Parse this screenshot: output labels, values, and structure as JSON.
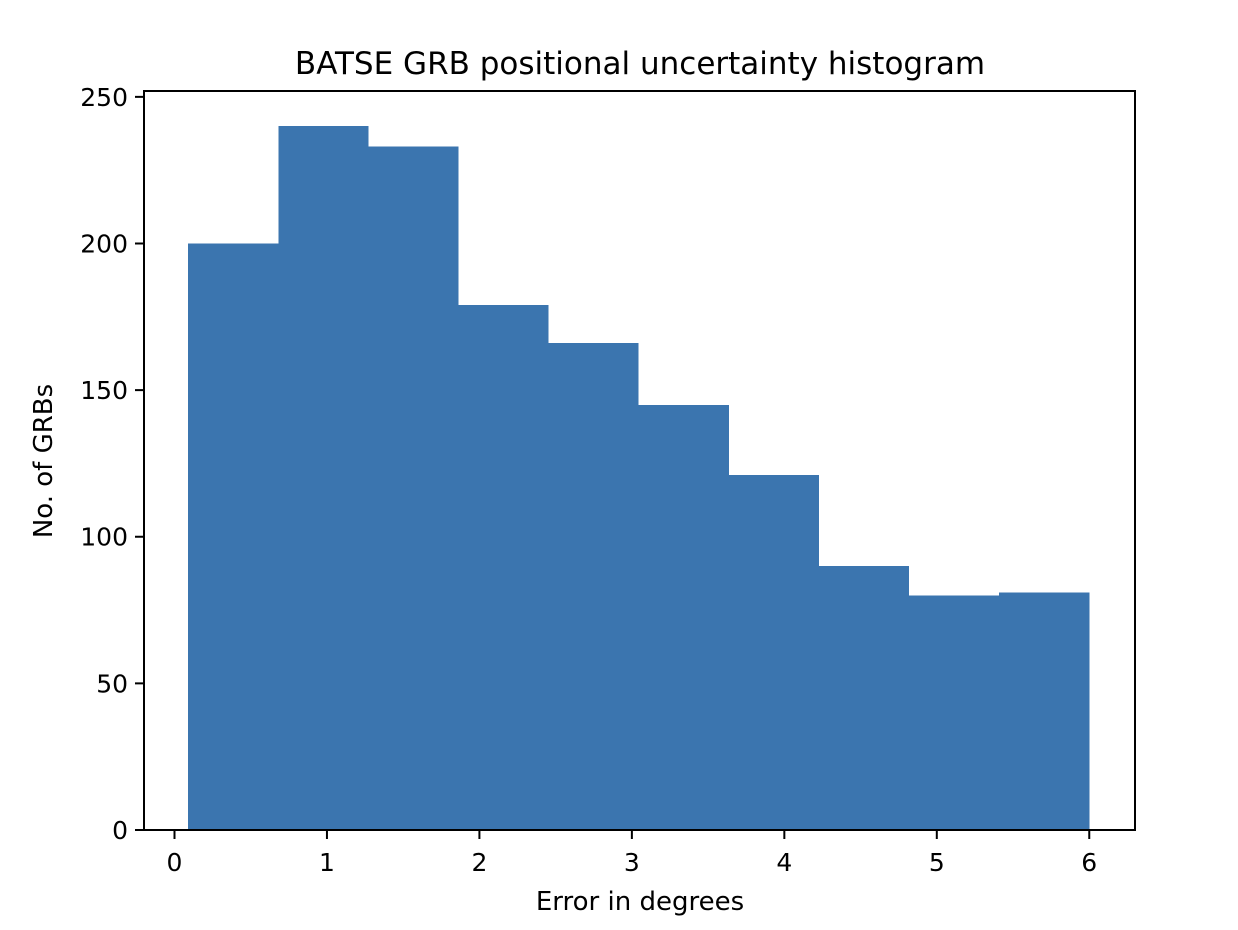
{
  "chart_data": {
    "type": "bar",
    "title": "BATSE GRB positional uncertainty histogram",
    "xlabel": "Error in degrees",
    "ylabel": "No. of GRBs",
    "bin_edges": [
      0.09,
      0.681,
      1.272,
      1.863,
      2.454,
      3.045,
      3.636,
      4.227,
      4.818,
      5.409,
      6.0
    ],
    "values": [
      200,
      240,
      233,
      179,
      166,
      145,
      121,
      90,
      80,
      81
    ],
    "xlim": [
      -0.2,
      6.3
    ],
    "ylim": [
      0,
      252
    ],
    "xticks": [
      0,
      1,
      2,
      3,
      4,
      5,
      6
    ],
    "xtick_labels": [
      "0",
      "1",
      "2",
      "3",
      "4",
      "5",
      "6"
    ],
    "yticks": [
      0,
      50,
      100,
      150,
      200,
      250
    ],
    "ytick_labels": [
      "0",
      "50",
      "100",
      "150",
      "200",
      "250"
    ],
    "bar_color": "#3b75af",
    "grid": false
  }
}
